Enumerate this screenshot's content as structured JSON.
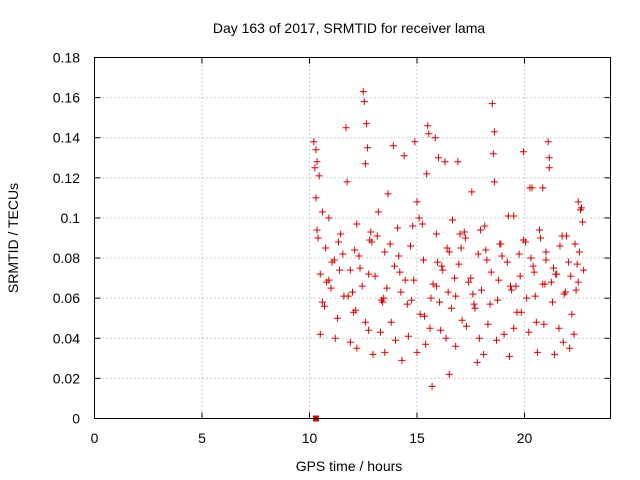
{
  "chart_data": {
    "type": "scatter",
    "title": "Day 163 of 2017, SRMTID for receiver lama",
    "xlabel": "GPS time / hours",
    "ylabel": "SRMTID / TECUs",
    "xlim": [
      0,
      24
    ],
    "ylim": [
      0,
      0.18
    ],
    "xticks": [
      0,
      5,
      10,
      15,
      20
    ],
    "xtick_labels": [
      "0",
      "5",
      "10",
      "15",
      "20"
    ],
    "yticks": [
      0,
      0.02,
      0.04,
      0.06,
      0.08,
      0.1,
      0.12,
      0.14,
      0.16,
      0.18
    ],
    "ytick_labels": [
      "0",
      "0.02",
      "0.04",
      "0.06",
      "0.08",
      "0.1",
      "0.12",
      "0.14",
      "0.16",
      "0.18"
    ],
    "grid": true,
    "marker": "+",
    "color": "#d40000",
    "series": [
      {
        "name": "SRMTID",
        "x": [
          10.2,
          10.25,
          10.3,
          10.4,
          10.5,
          10.6,
          10.75,
          10.9,
          11.0,
          11.15,
          11.3,
          11.45,
          11.6,
          11.75,
          11.9,
          12.05,
          12.2,
          12.3,
          12.45,
          12.6,
          12.75,
          12.9,
          13.05,
          13.2,
          13.35,
          13.5,
          13.65,
          13.8,
          13.95,
          14.1,
          14.25,
          14.4,
          14.55,
          14.7,
          14.85,
          15.0,
          15.15,
          15.3,
          15.45,
          15.6,
          15.75,
          15.9,
          16.05,
          16.2,
          16.35,
          16.5,
          16.65,
          16.8,
          16.95,
          17.1,
          17.25,
          17.4,
          17.55,
          17.7,
          17.85,
          18.0,
          18.15,
          18.3,
          18.45,
          18.6,
          18.75,
          18.9,
          19.05,
          19.2,
          19.35,
          19.5,
          19.65,
          19.8,
          19.95,
          20.1,
          20.25,
          20.4,
          20.55,
          20.7,
          20.85,
          21.0,
          21.15,
          21.3,
          21.45,
          21.6,
          21.75,
          21.9,
          22.05,
          22.2,
          22.35,
          22.5,
          22.65,
          22.75,
          10.3,
          10.45,
          10.35,
          12.5,
          12.55,
          12.65,
          12.7,
          11.7,
          13.9,
          14.9,
          15.5,
          15.55,
          15.85,
          16.0,
          16.3,
          16.9,
          18.5,
          18.6,
          18.55,
          19.95,
          21.1,
          21.15,
          20.35,
          20.85,
          22.5,
          22.6,
          12.2,
          12.95,
          13.5,
          14.3,
          15.0,
          15.7,
          16.5,
          17.8,
          18.1,
          19.3,
          20.6,
          21.4,
          22.1,
          10.5,
          11.2,
          11.9,
          12.6,
          13.3,
          14.0,
          14.6,
          15.4,
          16.1,
          16.8,
          17.3,
          17.9,
          18.7,
          19.5,
          20.2,
          20.9,
          21.8,
          22.3,
          10.35,
          10.6,
          10.9,
          11.35,
          11.8,
          12.1,
          12.75,
          13.15,
          13.6,
          14.15,
          14.75,
          15.25,
          15.9,
          16.4,
          16.75,
          17.2,
          17.6,
          18.25,
          18.85,
          19.4,
          19.75,
          20.45,
          20.75,
          21.25,
          21.65,
          22.15,
          22.45,
          22.7,
          10.7,
          11.05,
          11.55,
          12.0,
          12.35,
          12.85,
          13.4,
          13.75,
          14.45,
          15.1,
          15.65,
          16.15,
          16.6,
          17.05,
          17.5,
          17.95,
          18.4,
          18.95,
          19.6,
          20.05,
          20.5,
          21.0,
          21.5,
          21.95,
          22.4,
          10.8,
          11.4,
          12.15,
          12.8,
          13.45,
          14.2,
          14.8,
          15.35,
          15.95,
          16.45,
          17.0,
          17.65,
          18.2,
          18.8,
          19.25,
          19.85,
          20.3,
          20.95,
          21.35,
          21.85,
          22.55
        ],
        "y": [
          0.138,
          0.125,
          0.11,
          0.09,
          0.072,
          0.058,
          0.085,
          0.1,
          0.065,
          0.079,
          0.05,
          0.092,
          0.061,
          0.118,
          0.074,
          0.053,
          0.097,
          0.081,
          0.066,
          0.127,
          0.044,
          0.088,
          0.071,
          0.103,
          0.059,
          0.083,
          0.112,
          0.048,
          0.076,
          0.095,
          0.063,
          0.131,
          0.057,
          0.086,
          0.069,
          0.108,
          0.052,
          0.079,
          0.122,
          0.045,
          0.067,
          0.092,
          0.058,
          0.074,
          0.04,
          0.083,
          0.099,
          0.061,
          0.077,
          0.049,
          0.09,
          0.068,
          0.113,
          0.055,
          0.082,
          0.064,
          0.096,
          0.047,
          0.073,
          0.118,
          0.059,
          0.087,
          0.042,
          0.078,
          0.066,
          0.101,
          0.053,
          0.071,
          0.089,
          0.06,
          0.115,
          0.076,
          0.048,
          0.094,
          0.067,
          0.083,
          0.125,
          0.058,
          0.072,
          0.045,
          0.091,
          0.063,
          0.078,
          0.052,
          0.087,
          0.068,
          0.105,
          0.074,
          0.134,
          0.121,
          0.128,
          0.163,
          0.158,
          0.147,
          0.135,
          0.145,
          0.136,
          0.138,
          0.146,
          0.142,
          0.14,
          0.13,
          0.128,
          0.128,
          0.157,
          0.143,
          0.132,
          0.133,
          0.138,
          0.13,
          0.115,
          0.115,
          0.108,
          0.104,
          0.035,
          0.032,
          0.033,
          0.029,
          0.033,
          0.016,
          0.022,
          0.028,
          0.032,
          0.031,
          0.033,
          0.032,
          0.035,
          0.042,
          0.04,
          0.038,
          0.048,
          0.043,
          0.039,
          0.041,
          0.037,
          0.044,
          0.036,
          0.046,
          0.04,
          0.039,
          0.045,
          0.043,
          0.047,
          0.038,
          0.042,
          0.094,
          0.103,
          0.069,
          0.088,
          0.061,
          0.084,
          0.072,
          0.091,
          0.065,
          0.081,
          0.059,
          0.097,
          0.066,
          0.085,
          0.07,
          0.093,
          0.062,
          0.079,
          0.087,
          0.064,
          0.082,
          0.073,
          0.09,
          0.068,
          0.086,
          0.071,
          0.077,
          0.098,
          0.056,
          0.078,
          0.082,
          0.063,
          0.075,
          0.093,
          0.058,
          0.087,
          0.069,
          0.1,
          0.06,
          0.076,
          0.055,
          0.085,
          0.07,
          0.094,
          0.057,
          0.081,
          0.066,
          0.088,
          0.061,
          0.079,
          0.072,
          0.091,
          0.064,
          0.068,
          0.074,
          0.054,
          0.089,
          0.06,
          0.073,
          0.096,
          0.051,
          0.078,
          0.063,
          0.092,
          0.057,
          0.084,
          0.069,
          0.101,
          0.053,
          0.08,
          0.067,
          0.075,
          0.062,
          0.083
        ],
        "note": "Representative sample of the dense scatter of '+' markers between ~10.2 h and ~22.8 h, values mostly 0.03–0.14 TECU; one filled marker at (10.3, 0)."
      }
    ],
    "outlier_marker": {
      "x": 10.3,
      "y": 0
    }
  }
}
